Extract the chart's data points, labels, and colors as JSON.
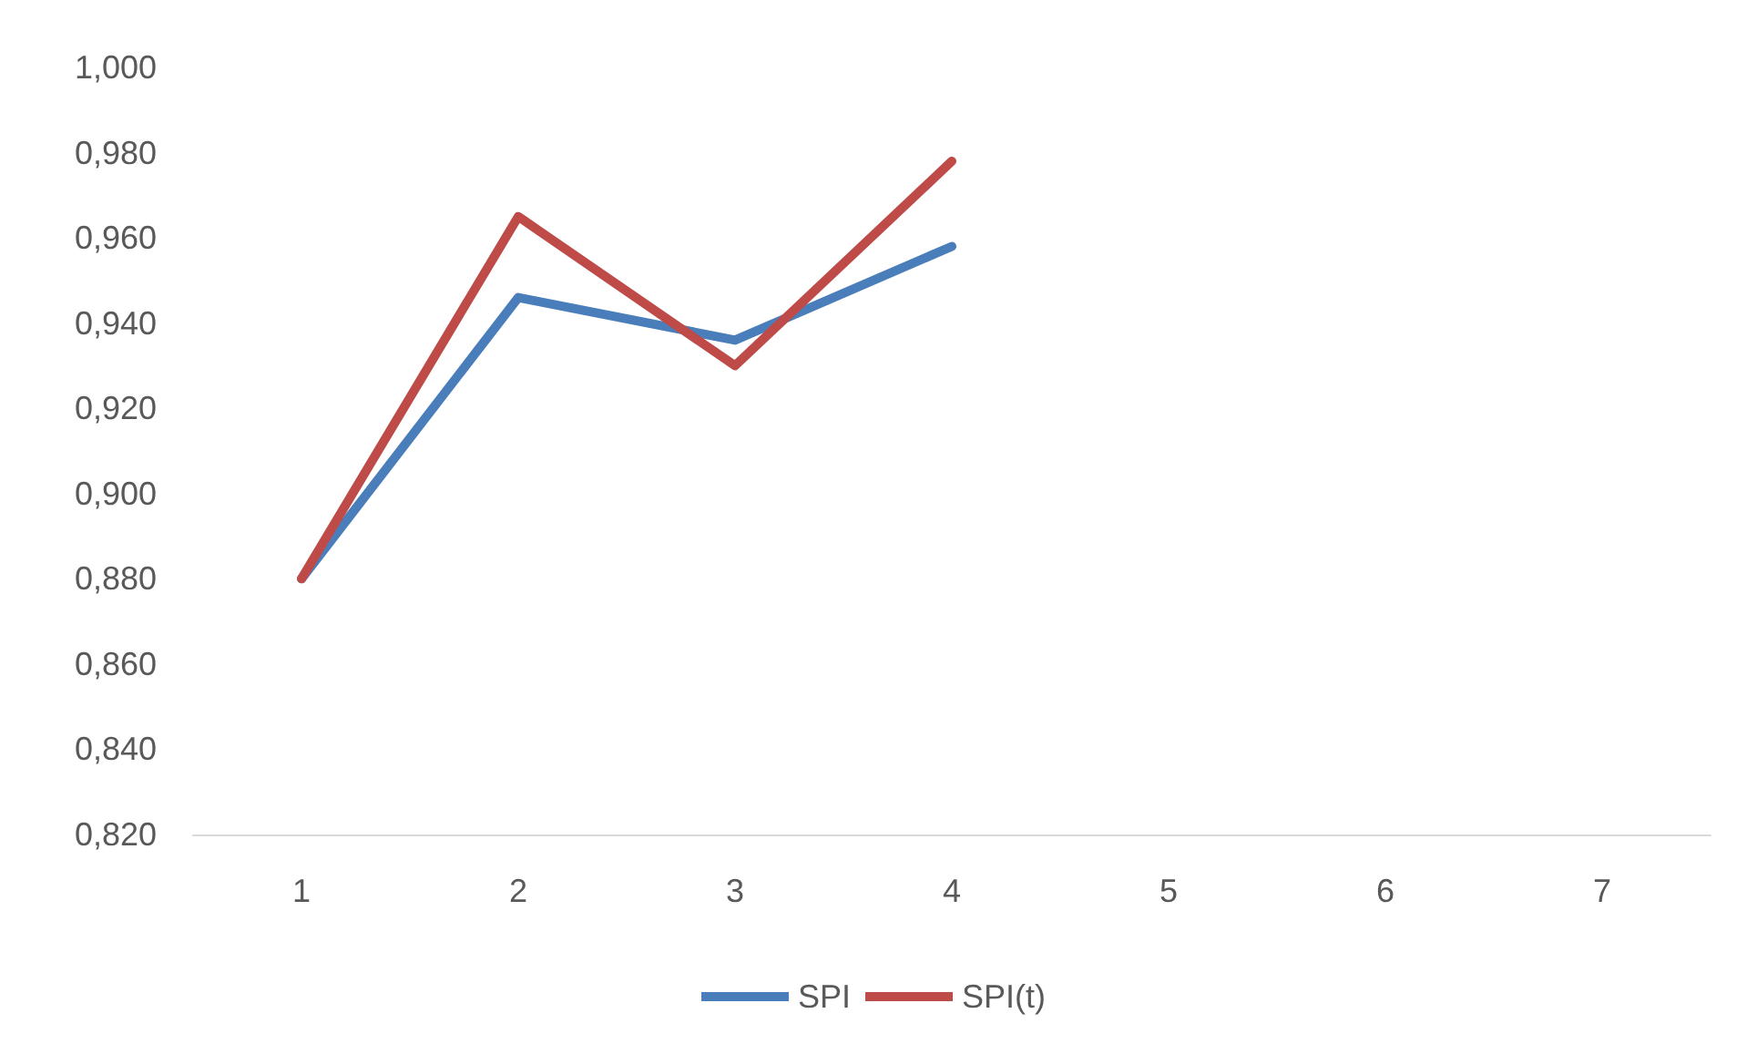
{
  "chart_data": {
    "type": "line",
    "categories": [
      "1",
      "2",
      "3",
      "4",
      "5",
      "6",
      "7"
    ],
    "series": [
      {
        "name": "SPI",
        "color": "#4a7ebb",
        "values": [
          0.88,
          0.946,
          0.936,
          0.958,
          null,
          null,
          null
        ]
      },
      {
        "name": "SPI(t)",
        "color": "#be4b48",
        "values": [
          0.88,
          0.965,
          0.93,
          0.978,
          null,
          null,
          null
        ]
      }
    ],
    "ylim": [
      0.82,
      1.0
    ],
    "yticks": [
      {
        "value": 0.82,
        "label": "0,820"
      },
      {
        "value": 0.84,
        "label": "0,840"
      },
      {
        "value": 0.86,
        "label": "0,860"
      },
      {
        "value": 0.88,
        "label": "0,880"
      },
      {
        "value": 0.9,
        "label": "0,900"
      },
      {
        "value": 0.92,
        "label": "0,920"
      },
      {
        "value": 0.94,
        "label": "0,940"
      },
      {
        "value": 0.96,
        "label": "0,960"
      },
      {
        "value": 0.98,
        "label": "0,980"
      },
      {
        "value": 1.0,
        "label": "1,000"
      }
    ],
    "grid": false,
    "legend": "bottom",
    "marker": "none",
    "line_style": "solid"
  }
}
